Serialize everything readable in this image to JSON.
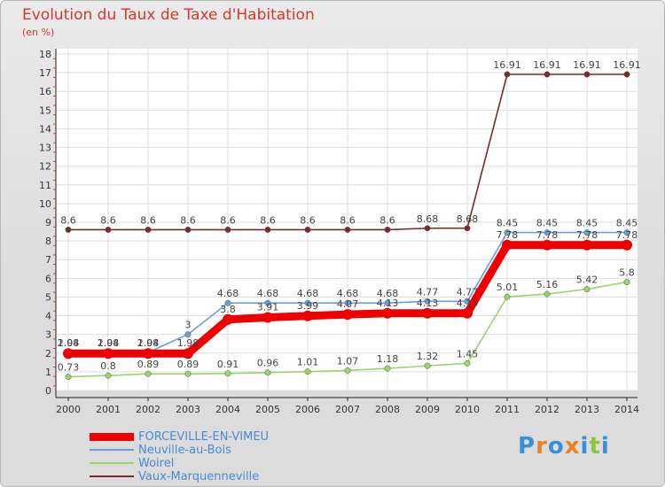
{
  "header": {
    "title": "Evolution du Taux de Taxe d'Habitation",
    "unit": "(en %)"
  },
  "chart_data": {
    "type": "line",
    "title": "Evolution du Taux de Taxe d'Habitation",
    "ylabel": "(en %)",
    "ylim": [
      0,
      18
    ],
    "yticks": [
      "0",
      "1",
      "2",
      "3",
      "4",
      "5",
      "6",
      "7",
      "8",
      "9",
      "10",
      "11",
      "12",
      "13",
      "14",
      "15",
      "16",
      "17",
      "18"
    ],
    "x": [
      "2000",
      "2001",
      "2002",
      "2003",
      "2004",
      "2005",
      "2006",
      "2007",
      "2008",
      "2009",
      "2010",
      "2011",
      "2012",
      "2013",
      "2014"
    ],
    "grid": true,
    "legend_position": "bottom-left",
    "series": [
      {
        "name": "Vaux-Marquenneville",
        "color": "#7a2a2a",
        "values": [
          8.6,
          8.6,
          8.6,
          8.6,
          8.6,
          8.6,
          8.6,
          8.6,
          8.6,
          8.68,
          8.68,
          16.91,
          16.91,
          16.91,
          16.91
        ],
        "labels": [
          "8.6",
          "8.6",
          "8.6",
          "8.6",
          "8.6",
          "8.6",
          "8.6",
          "8.6",
          "8.6",
          "8.68",
          "8.68",
          "16.91",
          "16.91",
          "16.91",
          "16.91"
        ]
      },
      {
        "name": "Neuville-au-Bois",
        "color": "#6aa0d8",
        "values": [
          2.04,
          2.04,
          2.04,
          3,
          4.68,
          4.68,
          4.68,
          4.68,
          4.68,
          4.77,
          4.77,
          8.45,
          8.45,
          8.45,
          8.45
        ],
        "labels": [
          "2.04",
          "2.04",
          "2.04",
          "3",
          "4.68",
          "4.68",
          "4.68",
          "4.68",
          "4.68",
          "4.77",
          "4.77",
          "8.45",
          "8.45",
          "8.45",
          "8.45"
        ]
      },
      {
        "name": "Woirel",
        "color": "#9bd46a",
        "values": [
          0.73,
          0.8,
          0.89,
          0.89,
          0.91,
          0.96,
          1.01,
          1.07,
          1.18,
          1.32,
          1.45,
          5.01,
          5.16,
          5.42,
          5.8
        ],
        "labels": [
          "0.73",
          "0.8",
          "0.89",
          "0.89",
          "0.91",
          "0.96",
          "1.01",
          "1.07",
          "1.18",
          "1.32",
          "1.45",
          "5.01",
          "5.16",
          "5.42",
          "5.8"
        ]
      },
      {
        "name": "FORCEVILLE-EN-VIMEU",
        "color": "#ee0000",
        "values": [
          1.98,
          1.98,
          1.98,
          1.98,
          3.8,
          3.91,
          3.99,
          4.07,
          4.13,
          4.13,
          4.13,
          7.78,
          7.78,
          7.78,
          7.78
        ],
        "labels": [
          "1.98",
          "1.98",
          "1.98",
          "1.98",
          "3.8",
          "3.91",
          "3.99",
          "4.07",
          "4.13",
          "4.13",
          "4.13",
          "7.78",
          "7.78",
          "7.78",
          "7.78"
        ]
      }
    ]
  },
  "legend": [
    {
      "label": "FORCEVILLE-EN-VIMEU",
      "color": "#ee0000"
    },
    {
      "label": "Neuville-au-Bois",
      "color": "#6aa0d8"
    },
    {
      "label": "Woirel",
      "color": "#9bd46a"
    },
    {
      "label": "Vaux-Marquenneville",
      "color": "#7a2a2a"
    }
  ],
  "logo": {
    "letters": [
      "P",
      "r",
      "o",
      "x",
      "i",
      "t",
      "i"
    ],
    "colors": [
      "#3a8fd8",
      "#e8822a",
      "#3a8fd8",
      "#e8822a",
      "#3a8fd8",
      "#8cc63f",
      "#3a8fd8"
    ]
  }
}
